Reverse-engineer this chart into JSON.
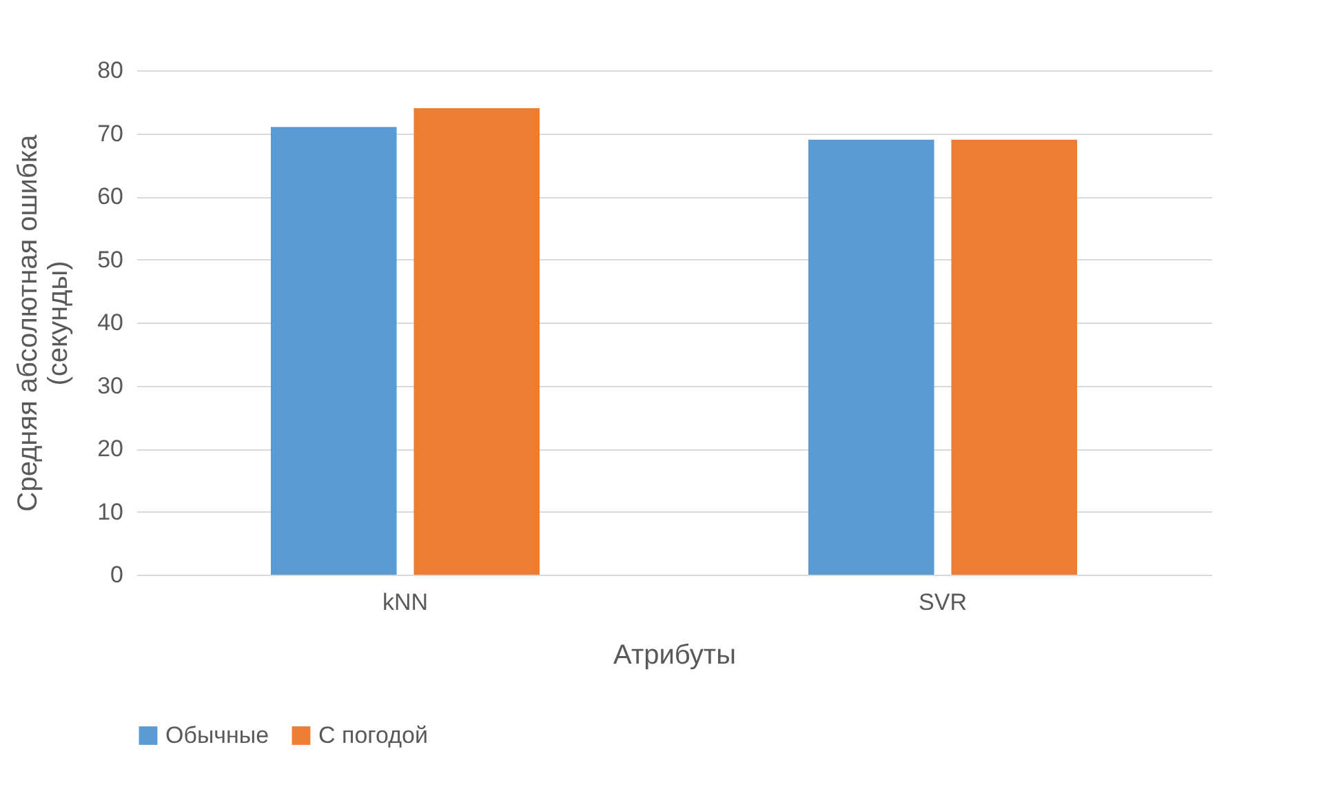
{
  "chart_data": {
    "type": "bar",
    "xlabel": "Атрибуты",
    "ylabel": "Средняя абсолютная ошибка (секунды)",
    "categories": [
      "kNN",
      "SVR"
    ],
    "series": [
      {
        "name": "Обычные",
        "color": "#5b9bd5",
        "values": [
          71,
          69
        ]
      },
      {
        "name": "С погодой",
        "color": "#ed7d31",
        "values": [
          74,
          69
        ]
      }
    ],
    "ylim": [
      0,
      80
    ],
    "yticks": [
      0,
      10,
      20,
      30,
      40,
      50,
      60,
      70,
      80
    ],
    "grid": "y",
    "legend": "bottom"
  }
}
